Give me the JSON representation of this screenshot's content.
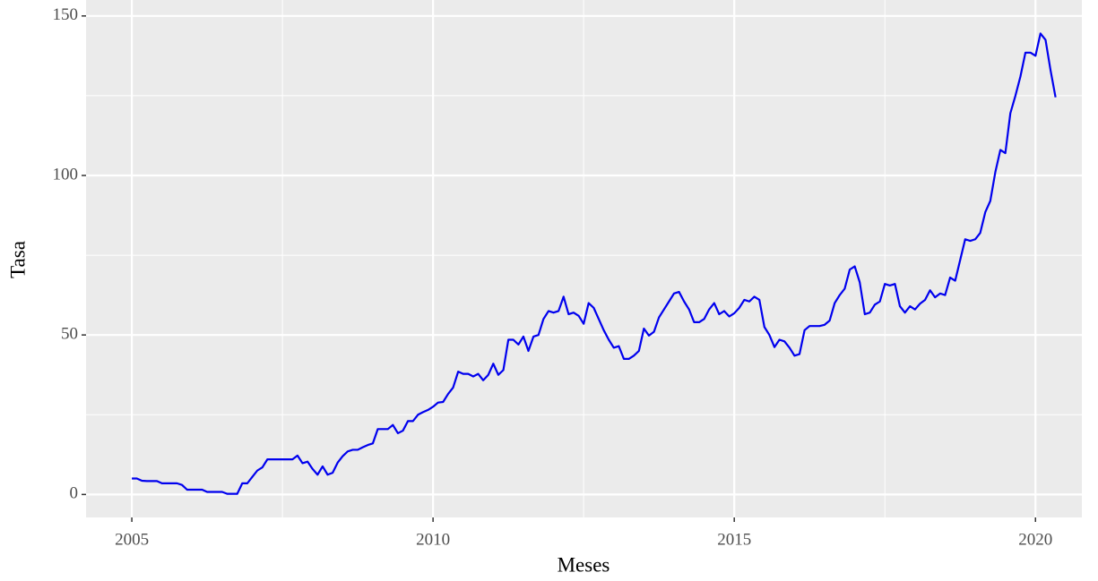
{
  "chart_data": {
    "type": "line",
    "x_label": "Meses",
    "y_label": "Tasa",
    "color": "#0000ee",
    "grid": true,
    "background": "#ebebeb",
    "xlim": [
      2004.24,
      2020.77
    ],
    "xticks": [
      2005,
      2010,
      2015,
      2020
    ],
    "minor_xticks": [
      2007.5,
      2012.5,
      2017.5
    ],
    "ylim": [
      -7.2,
      155
    ],
    "yticks": [
      0,
      50,
      100,
      150
    ],
    "minor_yticks": [
      25,
      75,
      125
    ],
    "x": [
      2005,
      2005.083,
      2005.167,
      2005.25,
      2005.333,
      2005.417,
      2005.5,
      2005.583,
      2005.667,
      2005.75,
      2005.833,
      2005.917,
      2006,
      2006.083,
      2006.167,
      2006.25,
      2006.333,
      2006.417,
      2006.5,
      2006.583,
      2006.667,
      2006.75,
      2006.833,
      2006.917,
      2007,
      2007.083,
      2007.167,
      2007.25,
      2007.333,
      2007.417,
      2007.5,
      2007.583,
      2007.667,
      2007.75,
      2007.833,
      2007.917,
      2008,
      2008.083,
      2008.167,
      2008.25,
      2008.333,
      2008.417,
      2008.5,
      2008.583,
      2008.667,
      2008.75,
      2008.833,
      2008.917,
      2009,
      2009.083,
      2009.167,
      2009.25,
      2009.333,
      2009.417,
      2009.5,
      2009.583,
      2009.667,
      2009.75,
      2009.833,
      2009.917,
      2010,
      2010.083,
      2010.167,
      2010.25,
      2010.333,
      2010.417,
      2010.5,
      2010.583,
      2010.667,
      2010.75,
      2010.833,
      2010.917,
      2011,
      2011.083,
      2011.167,
      2011.25,
      2011.333,
      2011.417,
      2011.5,
      2011.583,
      2011.667,
      2011.75,
      2011.833,
      2011.917,
      2012,
      2012.083,
      2012.167,
      2012.25,
      2012.333,
      2012.417,
      2012.5,
      2012.583,
      2012.667,
      2012.75,
      2012.833,
      2012.917,
      2013,
      2013.083,
      2013.167,
      2013.25,
      2013.333,
      2013.417,
      2013.5,
      2013.583,
      2013.667,
      2013.75,
      2013.833,
      2013.917,
      2014,
      2014.083,
      2014.167,
      2014.25,
      2014.333,
      2014.417,
      2014.5,
      2014.583,
      2014.667,
      2014.75,
      2014.833,
      2014.917,
      2015,
      2015.083,
      2015.167,
      2015.25,
      2015.333,
      2015.417,
      2015.5,
      2015.583,
      2015.667,
      2015.75,
      2015.833,
      2015.917,
      2016,
      2016.083,
      2016.167,
      2016.25,
      2016.333,
      2016.417,
      2016.5,
      2016.583,
      2016.667,
      2016.75,
      2016.833,
      2016.917,
      2017,
      2017.083,
      2017.167,
      2017.25,
      2017.333,
      2017.417,
      2017.5,
      2017.583,
      2017.667,
      2017.75,
      2017.833,
      2017.917,
      2018,
      2018.083,
      2018.167,
      2018.25,
      2018.333,
      2018.417,
      2018.5,
      2018.583,
      2018.667,
      2018.75,
      2018.833,
      2018.917,
      2019,
      2019.083,
      2019.167,
      2019.25,
      2019.333,
      2019.417,
      2019.5,
      2019.583,
      2019.667,
      2019.75,
      2019.833,
      2019.917,
      2020,
      2020.083,
      2020.167,
      2020.25,
      2020.333
    ],
    "values": [
      5,
      5,
      4.3,
      4.2,
      4.2,
      4.2,
      3.5,
      3.5,
      3.5,
      3.5,
      3,
      1.5,
      1.5,
      1.5,
      1.5,
      0.8,
      0.8,
      0.8,
      0.8,
      0.2,
      0.2,
      0.2,
      3.5,
      3.5,
      5.5,
      7.5,
      8.5,
      11,
      11,
      11,
      11,
      11,
      11,
      12.2,
      9.8,
      10.3,
      8,
      6.2,
      8.8,
      6.2,
      6.8,
      10,
      12,
      13.5,
      14,
      14,
      14.8,
      15.5,
      16,
      20.5,
      20.5,
      20.5,
      21.8,
      19.2,
      20,
      23,
      23,
      25,
      25.8,
      26.5,
      27.5,
      28.8,
      29,
      31.5,
      33.5,
      38.5,
      37.8,
      37.8,
      37,
      37.8,
      35.8,
      37.5,
      41,
      37.5,
      39,
      48.5,
      48.5,
      47,
      49.5,
      45,
      49.5,
      50,
      55,
      57.5,
      57,
      57.5,
      62,
      56.5,
      57,
      56,
      53.5,
      60,
      58.5,
      55,
      51.5,
      48.5,
      46,
      46.5,
      42.5,
      42.5,
      43.5,
      45,
      52,
      49.8,
      51,
      55.5,
      58,
      60.5,
      63,
      63.5,
      60.5,
      58,
      54,
      54,
      55,
      58,
      60,
      56.5,
      57.5,
      55.8,
      56.8,
      58.5,
      61,
      60.5,
      62,
      61,
      52.5,
      50,
      46.2,
      48.5,
      48,
      46,
      43.5,
      44,
      51.5,
      52.8,
      52.8,
      52.8,
      53.2,
      54.5,
      60,
      62.5,
      64.5,
      70.5,
      71.5,
      66.5,
      56.5,
      57,
      59.5,
      60.5,
      66,
      65.5,
      66,
      59,
      57,
      59,
      58,
      59.8,
      61,
      64,
      61.8,
      63,
      62.5,
      68,
      67,
      73.5,
      80,
      79.5,
      80,
      82,
      88.5,
      92,
      101,
      108,
      107,
      119.5,
      125,
      131,
      138.5,
      138.5,
      137.5,
      144.5,
      142.5,
      133,
      124.5
    ]
  }
}
